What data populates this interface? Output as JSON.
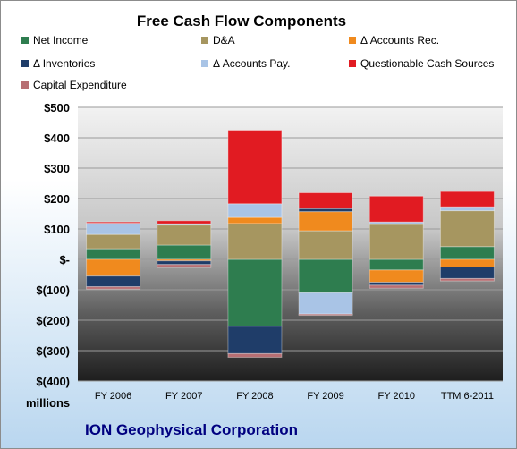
{
  "chart_data": {
    "type": "bar",
    "stacked": true,
    "title": "Free Cash Flow Components",
    "categories": [
      "FY 2006",
      "FY 2007",
      "FY 2008",
      "FY 2009",
      "FY 2010",
      "TTM 6-2011"
    ],
    "ylim": [
      -400,
      500
    ],
    "yticks": [
      -400,
      -300,
      -200,
      -100,
      0,
      100,
      200,
      300,
      400,
      500
    ],
    "ytick_labels": [
      "$(400)",
      "$(300)",
      "$(200)",
      "$(100)",
      "$-",
      "$100",
      "$200",
      "$300",
      "$400",
      "$500"
    ],
    "ylabel": "millions",
    "grid": true,
    "legend_position": "top",
    "series": [
      {
        "name": "Net Income",
        "color": "#2e7d4f",
        "values": [
          35,
          47,
          -220,
          -110,
          -35,
          42
        ]
      },
      {
        "name": "D&A",
        "color": "#a69660",
        "values": [
          47,
          66,
          118,
          94,
          115,
          118
        ]
      },
      {
        "name": "Δ Accounts Rec.",
        "color": "#f08a1e",
        "values": [
          -55,
          -5,
          20,
          63,
          -40,
          -25
        ]
      },
      {
        "name": "Δ Inventories",
        "color": "#1f3d69",
        "values": [
          -35,
          -12,
          -90,
          10,
          -10,
          -38
        ]
      },
      {
        "name": "Δ Accounts Pay.",
        "color": "#a9c4e6",
        "values": [
          37,
          4,
          45,
          -70,
          8,
          13
        ]
      },
      {
        "name": "Questionable Cash Sources",
        "color": "#e11b22",
        "values": [
          4,
          10,
          242,
          52,
          85,
          50
        ]
      },
      {
        "name": "Capital Expenditure",
        "color": "#b76f73",
        "values": [
          -8,
          -10,
          -12,
          -4,
          -10,
          -8
        ]
      }
    ]
  },
  "company": "ION Geophysical Corporation"
}
